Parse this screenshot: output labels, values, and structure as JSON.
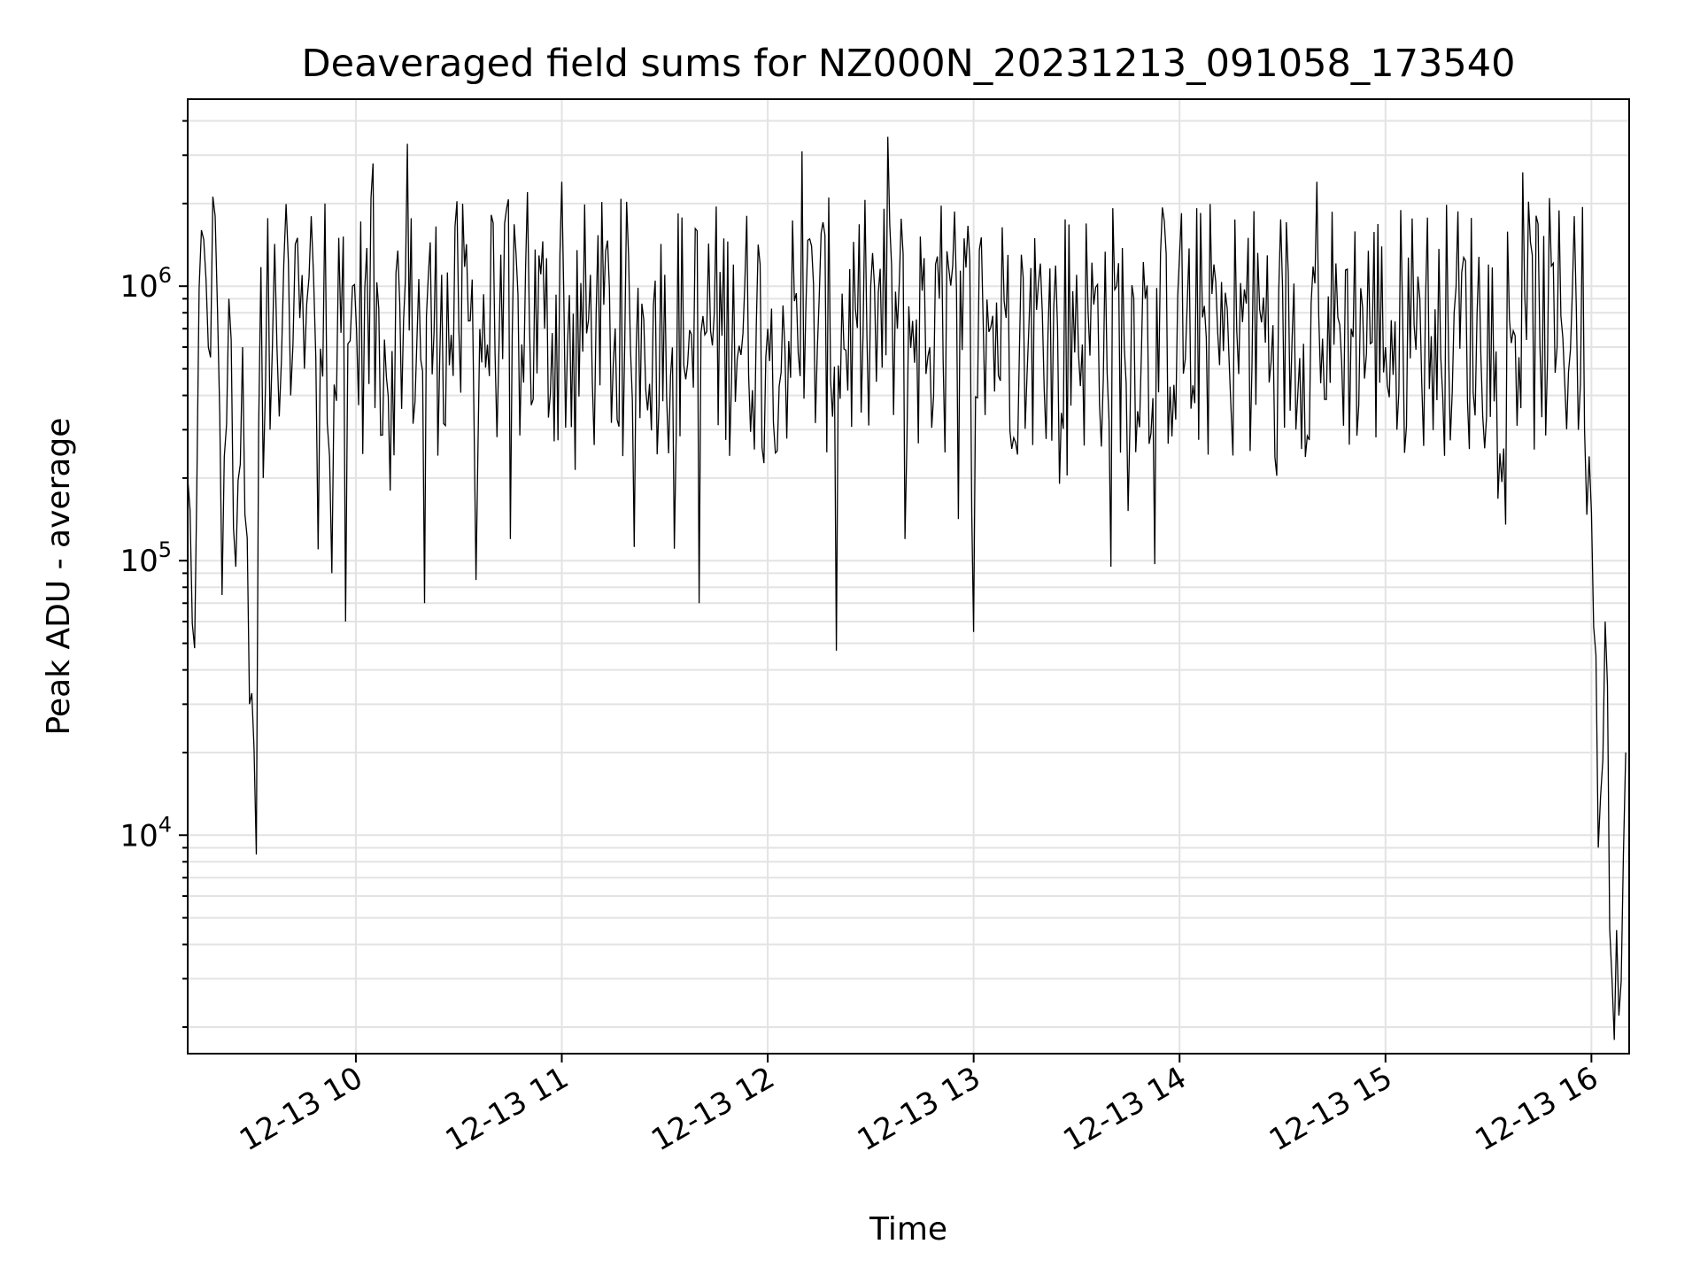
{
  "chart_data": {
    "type": "line",
    "title": "Deaveraged field sums for NZ000N_20231213_091058_173540",
    "xlabel": "Time",
    "ylabel": "Peak ADU - average",
    "y_scale": "log",
    "ylim": [
      1600,
      4800000
    ],
    "xlim": [
      "2023-12-13 09:11",
      "2023-12-13 16:11"
    ],
    "x_ticks": [
      "12-13 10",
      "12-13 11",
      "12-13 12",
      "12-13 13",
      "12-13 14",
      "12-13 15",
      "12-13 16"
    ],
    "y_ticks": [
      "10^4",
      "10^5",
      "10^6"
    ],
    "grid": true,
    "line_color": "#000000",
    "series": [
      {
        "x": [
          "2023-12-13 09:11",
          "2023-12-13 09:13",
          "2023-12-13 09:15",
          "2023-12-13 09:17",
          "2023-12-13 09:19",
          "2023-12-13 09:21",
          "2023-12-13 09:23",
          "2023-12-13 09:25",
          "2023-12-13 09:27",
          "2023-12-13 09:29",
          "2023-12-13 09:31",
          "2023-12-13 09:33",
          "2023-12-13 09:35",
          "2023-12-13 09:37",
          "2023-12-13 09:39",
          "2023-12-13 09:41",
          "2023-12-13 09:43",
          "2023-12-13 09:45",
          "2023-12-13 09:47",
          "2023-12-13 09:49",
          "2023-12-13 09:51",
          "2023-12-13 09:53",
          "2023-12-13 09:55",
          "2023-12-13 09:57",
          "2023-12-13 09:59",
          "2023-12-13 10:05",
          "2023-12-13 10:10",
          "2023-12-13 10:15",
          "2023-12-13 10:20",
          "2023-12-13 10:25",
          "2023-12-13 10:30",
          "2023-12-13 10:35",
          "2023-12-13 10:40",
          "2023-12-13 10:45",
          "2023-12-13 10:50",
          "2023-12-13 10:55",
          "2023-12-13 11:00",
          "2023-12-13 11:10",
          "2023-12-13 11:20",
          "2023-12-13 11:30",
          "2023-12-13 11:40",
          "2023-12-13 11:50",
          "2023-12-13 12:00",
          "2023-12-13 12:10",
          "2023-12-13 12:20",
          "2023-12-13 12:30",
          "2023-12-13 12:35",
          "2023-12-13 12:40",
          "2023-12-13 12:50",
          "2023-12-13 13:00",
          "2023-12-13 13:10",
          "2023-12-13 13:20",
          "2023-12-13 13:30",
          "2023-12-13 13:40",
          "2023-12-13 13:50",
          "2023-12-13 14:00",
          "2023-12-13 14:10",
          "2023-12-13 14:20",
          "2023-12-13 14:30",
          "2023-12-13 14:40",
          "2023-12-13 14:50",
          "2023-12-13 15:00",
          "2023-12-13 15:10",
          "2023-12-13 15:20",
          "2023-12-13 15:30",
          "2023-12-13 15:40",
          "2023-12-13 15:50",
          "2023-12-13 15:55",
          "2023-12-13 15:58",
          "2023-12-13 16:00",
          "2023-12-13 16:02",
          "2023-12-13 16:04",
          "2023-12-13 16:06",
          "2023-12-13 16:08",
          "2023-12-13 16:10"
        ],
        "values": [
          200000,
          48000,
          1600000,
          600000,
          1800000,
          75000,
          900000,
          95000,
          600000,
          30000,
          8500,
          200000,
          300000,
          600000,
          1200000,
          400000,
          1500000,
          500000,
          1800000,
          110000,
          2000000,
          90000,
          1500000,
          60000,
          1000000,
          2800000,
          180000,
          3300000,
          70000,
          1100000,
          700000,
          85000,
          1700000,
          120000,
          2200000,
          700000,
          2400000,
          800000,
          600000,
          1100000,
          70000,
          1200000,
          700000,
          3100000,
          47000,
          1000000,
          3500000,
          120000,
          900000,
          55000,
          1300000,
          800000,
          1100000,
          95000,
          900000,
          1300000,
          1200000,
          1500000,
          1000000,
          2400000,
          700000,
          600000,
          900000,
          800000,
          1200000,
          2600000,
          600000,
          1800000,
          300000,
          150000,
          9000,
          60000,
          3000,
          2200,
          20000
        ]
      }
    ]
  }
}
